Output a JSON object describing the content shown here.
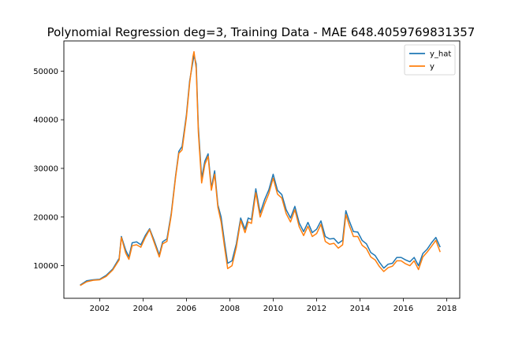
{
  "chart_data": {
    "type": "line",
    "title": "Polynomial Regression deg=3, Training Data - MAE 648.4059769831357",
    "xlabel": "",
    "ylabel": "",
    "x_ticks": [
      "2002",
      "2004",
      "2006",
      "2008",
      "2010",
      "2012",
      "2014",
      "2016",
      "2018"
    ],
    "y_ticks": [
      "10000",
      "20000",
      "30000",
      "40000",
      "50000"
    ],
    "xlim": [
      2000.35,
      2018.6
    ],
    "ylim": [
      3300,
      56200
    ],
    "grid": false,
    "legend_position": "top-right",
    "x": [
      2001.1,
      2001.4,
      2001.7,
      2002.0,
      2002.3,
      2002.6,
      2002.9,
      2003.0,
      2003.2,
      2003.35,
      2003.5,
      2003.7,
      2003.9,
      2004.1,
      2004.3,
      2004.5,
      2004.75,
      2004.9,
      2005.1,
      2005.3,
      2005.5,
      2005.65,
      2005.8,
      2006.0,
      2006.15,
      2006.3,
      2006.35,
      2006.45,
      2006.55,
      2006.7,
      2006.85,
      2007.0,
      2007.15,
      2007.3,
      2007.45,
      2007.6,
      2007.75,
      2007.9,
      2008.1,
      2008.3,
      2008.5,
      2008.7,
      2008.85,
      2009.0,
      2009.2,
      2009.4,
      2009.6,
      2009.8,
      2010.0,
      2010.2,
      2010.4,
      2010.6,
      2010.8,
      2011.0,
      2011.2,
      2011.4,
      2011.6,
      2011.8,
      2012.0,
      2012.2,
      2012.4,
      2012.6,
      2012.8,
      2013.0,
      2013.2,
      2013.35,
      2013.5,
      2013.7,
      2013.9,
      2014.1,
      2014.3,
      2014.5,
      2014.7,
      2014.9,
      2015.1,
      2015.3,
      2015.5,
      2015.7,
      2015.9,
      2016.1,
      2016.3,
      2016.5,
      2016.7,
      2016.9,
      2017.1,
      2017.3,
      2017.5,
      2017.7
    ],
    "series": [
      {
        "name": "y_hat",
        "color": "#1f77b4",
        "values": [
          6000,
          6900,
          7100,
          7200,
          8000,
          9300,
          11500,
          16000,
          13200,
          11800,
          14700,
          14900,
          14300,
          16200,
          17600,
          15300,
          12200,
          14900,
          15500,
          20800,
          28500,
          33500,
          34500,
          41000,
          48000,
          52000,
          53200,
          51500,
          38500,
          28000,
          31500,
          33000,
          26000,
          29500,
          22500,
          20000,
          15000,
          10500,
          11000,
          14500,
          19800,
          17500,
          19800,
          19500,
          25800,
          20800,
          23500,
          25600,
          28800,
          25500,
          24600,
          21500,
          19800,
          22200,
          18800,
          17000,
          18900,
          16800,
          17500,
          19200,
          16000,
          15500,
          15600,
          14600,
          15200,
          21300,
          19300,
          17000,
          16900,
          15200,
          14500,
          12700,
          12100,
          10700,
          9500,
          10300,
          10500,
          11700,
          11700,
          11200,
          10800,
          11700,
          10000,
          12500,
          13400,
          14700,
          15800,
          13800
        ]
      },
      {
        "name": "y",
        "color": "#ff7f0e",
        "values": [
          5900,
          6700,
          7000,
          7100,
          7800,
          9100,
          11200,
          15800,
          12600,
          11300,
          14100,
          14300,
          13800,
          15800,
          17400,
          14900,
          11800,
          14500,
          15000,
          20400,
          28200,
          33100,
          33800,
          40500,
          47500,
          53000,
          54000,
          50500,
          37500,
          27000,
          30800,
          32500,
          25500,
          28800,
          22000,
          19000,
          14000,
          9400,
          10000,
          13800,
          19300,
          16800,
          19000,
          18700,
          25000,
          20000,
          22600,
          24800,
          28000,
          24700,
          23900,
          20700,
          19000,
          21500,
          18000,
          16200,
          18100,
          16000,
          16600,
          18500,
          15000,
          14400,
          14600,
          13600,
          14300,
          20500,
          18400,
          16000,
          16000,
          14200,
          13500,
          11800,
          11200,
          9800,
          8800,
          9600,
          9900,
          11000,
          11000,
          10400,
          10000,
          11000,
          9200,
          11800,
          12800,
          14000,
          15200,
          12800
        ]
      }
    ]
  }
}
